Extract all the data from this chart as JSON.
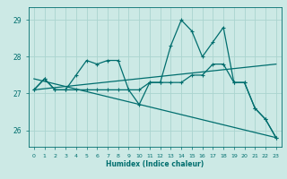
{
  "x": [
    0,
    1,
    2,
    3,
    4,
    5,
    6,
    7,
    8,
    9,
    10,
    11,
    12,
    13,
    14,
    15,
    16,
    17,
    18,
    19,
    20,
    21,
    22,
    23
  ],
  "line1": [
    27.1,
    27.4,
    27.1,
    27.1,
    27.5,
    27.9,
    27.8,
    27.9,
    27.9,
    27.1,
    26.7,
    27.3,
    27.3,
    28.3,
    29.0,
    28.7,
    28.0,
    28.4,
    28.8,
    27.3,
    27.3,
    26.6,
    26.3,
    25.8
  ],
  "line2": [
    27.1,
    27.4,
    27.1,
    27.1,
    27.1,
    27.1,
    27.1,
    27.1,
    27.1,
    27.1,
    27.1,
    27.3,
    27.3,
    27.3,
    27.3,
    27.5,
    27.5,
    27.8,
    27.8,
    27.3,
    27.3,
    26.6,
    26.3,
    25.8
  ],
  "trend1_x": [
    0,
    23
  ],
  "trend1_y": [
    27.1,
    27.8
  ],
  "trend2_x": [
    0,
    23
  ],
  "trend2_y": [
    27.4,
    25.8
  ],
  "bg_color": "#cce9e5",
  "grid_color": "#aad4cf",
  "line_color": "#006e6e",
  "xlabel": "Humidex (Indice chaleur)",
  "ylim": [
    25.55,
    29.35
  ],
  "yticks": [
    26,
    27,
    28,
    29
  ],
  "xlim": [
    -0.5,
    23.5
  ]
}
